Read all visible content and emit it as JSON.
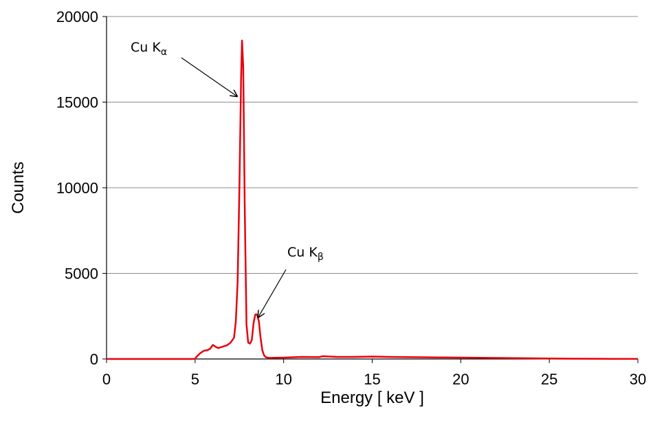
{
  "chart_data": {
    "type": "line",
    "title": "",
    "xlabel": "Energy [ keV ]",
    "ylabel": "Counts",
    "xlim": [
      0,
      30
    ],
    "ylim": [
      0,
      20000
    ],
    "x_ticks": [
      0,
      5,
      10,
      15,
      20,
      25,
      30
    ],
    "x_tick_labels": [
      "0",
      "5",
      "10",
      "15",
      "20",
      "25",
      "30"
    ],
    "y_ticks": [
      0,
      5000,
      10000,
      15000,
      20000
    ],
    "y_tick_labels": [
      "0",
      "5000",
      "10000",
      "15000",
      "20000"
    ],
    "grid": "horizontal",
    "legend": "none",
    "series": [
      {
        "color": "#e8000b",
        "points": [
          [
            0,
            0
          ],
          [
            4.9,
            0
          ],
          [
            5.0,
            10
          ],
          [
            5.1,
            150
          ],
          [
            5.3,
            350
          ],
          [
            5.5,
            480
          ],
          [
            5.7,
            520
          ],
          [
            5.85,
            600
          ],
          [
            6.0,
            820
          ],
          [
            6.15,
            720
          ],
          [
            6.3,
            640
          ],
          [
            6.5,
            700
          ],
          [
            6.8,
            800
          ],
          [
            7.0,
            950
          ],
          [
            7.2,
            1250
          ],
          [
            7.3,
            2200
          ],
          [
            7.4,
            4500
          ],
          [
            7.5,
            10000
          ],
          [
            7.6,
            16500
          ],
          [
            7.65,
            18600
          ],
          [
            7.72,
            17000
          ],
          [
            7.8,
            9000
          ],
          [
            7.9,
            2000
          ],
          [
            8.0,
            950
          ],
          [
            8.1,
            900
          ],
          [
            8.2,
            1100
          ],
          [
            8.3,
            2100
          ],
          [
            8.4,
            2600
          ],
          [
            8.5,
            2600
          ],
          [
            8.6,
            2200
          ],
          [
            8.7,
            1200
          ],
          [
            8.8,
            500
          ],
          [
            8.9,
            200
          ],
          [
            9.0,
            100
          ],
          [
            9.2,
            60
          ],
          [
            9.5,
            70
          ],
          [
            10,
            80
          ],
          [
            11,
            120
          ],
          [
            12,
            110
          ],
          [
            12.2,
            160
          ],
          [
            13,
            120
          ],
          [
            14,
            120
          ],
          [
            15,
            140
          ],
          [
            16,
            120
          ],
          [
            17,
            110
          ],
          [
            18,
            100
          ],
          [
            19,
            90
          ],
          [
            20,
            80
          ],
          [
            21,
            70
          ],
          [
            22,
            60
          ],
          [
            23,
            50
          ],
          [
            24,
            40
          ],
          [
            24.8,
            30
          ],
          [
            26,
            20
          ],
          [
            28,
            10
          ],
          [
            30,
            5
          ]
        ]
      }
    ],
    "annotations": [
      {
        "text": "Cu K",
        "subscript": "α",
        "points_to": [
          7.6,
          15500
        ]
      },
      {
        "text": "Cu K",
        "subscript": "β",
        "points_to": [
          8.8,
          2600
        ]
      }
    ]
  }
}
